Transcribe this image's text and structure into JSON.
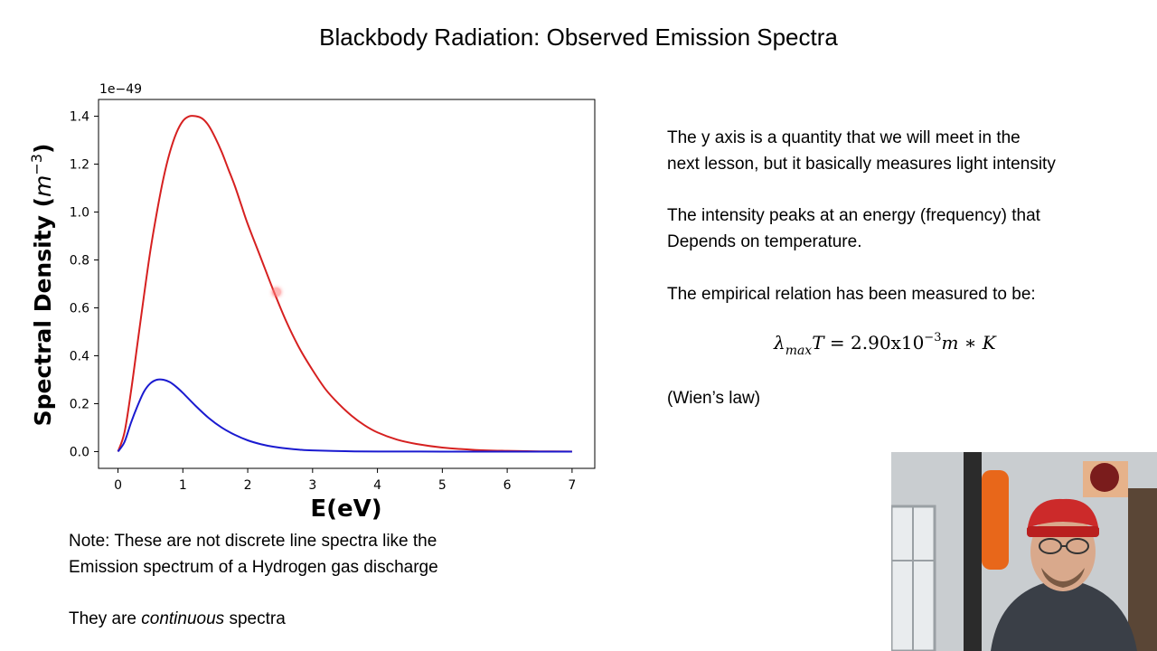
{
  "slide": {
    "title": "Blackbody Radiation:  Observed Emission Spectra"
  },
  "notes": {
    "line1": "Note:  These are not discrete line spectra like the",
    "line2": "Emission spectrum of a Hydrogen gas discharge",
    "continuous_prefix": "They are ",
    "continuous_word": "continuous",
    "continuous_suffix": " spectra"
  },
  "explanation": {
    "p1_line1": "The y axis is a quantity that we will meet in the",
    "p1_line2": "next lesson, but it basically measures light intensity",
    "p2_line1": "The intensity peaks at an energy (frequency) that",
    "p2_line2": "Depends on temperature.",
    "p3": "The empirical relation has been measured to be:",
    "formula": {
      "lambda": "λ",
      "sub": "max",
      "T": "T",
      "equals": " = 2.90x10",
      "exp": "−3",
      "units": "m ∗ K"
    },
    "wien": "(Wien’s law)"
  },
  "chart_data": {
    "type": "line",
    "xlabel": "E(eV)",
    "ylabel": "Spectral Density (m⁻³)",
    "ylabel_base": "Spectral Density (",
    "ylabel_unit": "m",
    "ylabel_exp": "−3",
    "ylabel_close": ")",
    "y_offset_text": "1e−49",
    "xlim": [
      -0.3,
      7.35
    ],
    "ylim": [
      -0.07,
      1.47
    ],
    "xticks": [
      0,
      1,
      2,
      3,
      4,
      5,
      6,
      7
    ],
    "yticks": [
      0.0,
      0.2,
      0.4,
      0.6,
      0.8,
      1.0,
      1.2,
      1.4
    ],
    "ytick_labels": [
      "0.0",
      "0.2",
      "0.4",
      "0.6",
      "0.8",
      "1.0",
      "1.2",
      "1.4"
    ],
    "grid": false,
    "series": [
      {
        "color": "#d62020",
        "x": [
          0,
          0.1,
          0.2,
          0.3,
          0.4,
          0.5,
          0.6,
          0.7,
          0.8,
          0.9,
          1.0,
          1.1,
          1.2,
          1.3,
          1.4,
          1.5,
          1.6,
          1.7,
          1.8,
          1.9,
          2.0,
          2.2,
          2.4,
          2.6,
          2.8,
          3.0,
          3.2,
          3.4,
          3.6,
          3.8,
          4.0,
          4.3,
          4.6,
          5.0,
          5.5,
          6.0,
          6.5,
          7.0
        ],
        "values": [
          0.0,
          0.08,
          0.25,
          0.45,
          0.65,
          0.84,
          1.0,
          1.14,
          1.25,
          1.33,
          1.38,
          1.4,
          1.4,
          1.39,
          1.36,
          1.31,
          1.25,
          1.18,
          1.11,
          1.03,
          0.95,
          0.81,
          0.67,
          0.54,
          0.43,
          0.34,
          0.26,
          0.2,
          0.15,
          0.11,
          0.08,
          0.05,
          0.032,
          0.017,
          0.007,
          0.003,
          0.001,
          0.0005
        ]
      },
      {
        "color": "#1a1ad0",
        "x": [
          0,
          0.1,
          0.2,
          0.3,
          0.4,
          0.5,
          0.6,
          0.7,
          0.8,
          0.9,
          1.0,
          1.2,
          1.4,
          1.6,
          1.8,
          2.0,
          2.2,
          2.4,
          2.6,
          2.8,
          3.0,
          3.5,
          4.0,
          5.0,
          6.0,
          7.0
        ],
        "values": [
          0.0,
          0.04,
          0.12,
          0.19,
          0.25,
          0.285,
          0.3,
          0.3,
          0.29,
          0.27,
          0.245,
          0.19,
          0.14,
          0.1,
          0.07,
          0.047,
          0.031,
          0.02,
          0.013,
          0.008,
          0.005,
          0.0015,
          0.0004,
          0.0,
          0.0,
          0.0
        ]
      }
    ]
  }
}
